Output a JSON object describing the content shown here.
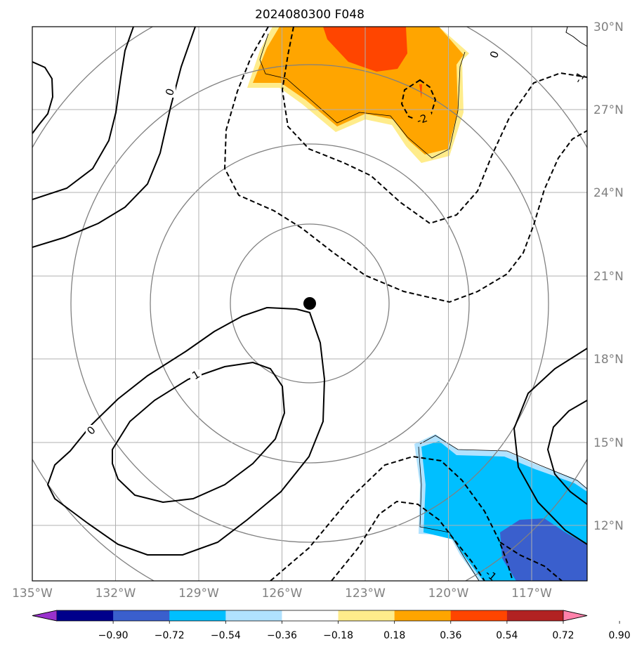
{
  "title": "2024080300 F048",
  "map": {
    "lon_range": [
      -135,
      -115
    ],
    "lat_range": [
      10,
      30
    ],
    "lon_ticks": [
      -135,
      -132,
      -129,
      -126,
      -123,
      -120,
      -117
    ],
    "lat_ticks": [
      12,
      15,
      18,
      21,
      24,
      27,
      30
    ],
    "lon_tick_labels": [
      "135°W",
      "132°W",
      "129°W",
      "126°W",
      "123°W",
      "120°W",
      "117°W"
    ],
    "lat_tick_labels": [
      "12°N",
      "15°N",
      "18°N",
      "21°N",
      "24°N",
      "27°N",
      "30°N"
    ],
    "center_marker": {
      "lon": -125.1,
      "lat": 20.1
    },
    "range_rings": "concentric circles around the storm center",
    "contour_labels": [
      "0",
      "1",
      "0",
      "-2",
      "-1",
      "0",
      "-1"
    ]
  },
  "colorbar": {
    "ticks": [
      "−0.90",
      "−0.72",
      "−0.54",
      "−0.36",
      "−0.18",
      "0.18",
      "0.36",
      "0.54",
      "0.72",
      "0.90"
    ],
    "colors": [
      "#9a32cd",
      "#00008b",
      "#3a5fcd",
      "#00bfff",
      "#b0e2ff",
      "#ffffff",
      "#ffec8b",
      "#ffa500",
      "#ff4500",
      "#b22222",
      "#ff82ab"
    ],
    "extend": "both"
  }
}
